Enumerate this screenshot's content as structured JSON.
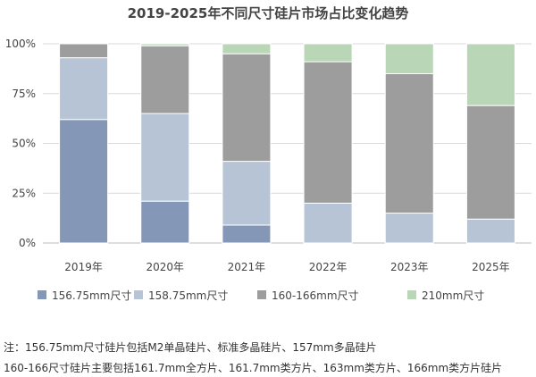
{
  "chart_data": {
    "type": "bar",
    "stacked": true,
    "title": "2019-2025年不同尺寸硅片市场占比变化趋势",
    "categories": [
      "2019年",
      "2020年",
      "2021年",
      "2022年",
      "2023年",
      "2025年"
    ],
    "series": [
      {
        "name": "156.75mm尺寸",
        "color": "#8597b7",
        "values": [
          62,
          21,
          9,
          0,
          0,
          0
        ]
      },
      {
        "name": "158.75mm尺寸",
        "color": "#b6c4d6",
        "values": [
          31,
          44,
          32,
          20,
          15,
          12
        ]
      },
      {
        "name": "160-166mm尺寸",
        "color": "#9d9d9d",
        "values": [
          7,
          34,
          54,
          71,
          70,
          57
        ]
      },
      {
        "name": "210mm尺寸",
        "color": "#b9d6b7",
        "values": [
          0,
          1,
          5,
          9,
          15,
          31
        ]
      }
    ],
    "ylim": [
      0,
      100
    ],
    "yticks": [
      "0%",
      "25%",
      "50%",
      "75%",
      "100%"
    ],
    "grid": true,
    "legend_position": "bottom"
  },
  "notes": [
    "注：156.75mm尺寸硅片包括M2单晶硅片、标准多晶硅片、157mm多晶硅片",
    "160-166尺寸硅片主要包括161.7mm全方片、161.7mm类方片、163mm类方片、166mm类方片硅片"
  ]
}
